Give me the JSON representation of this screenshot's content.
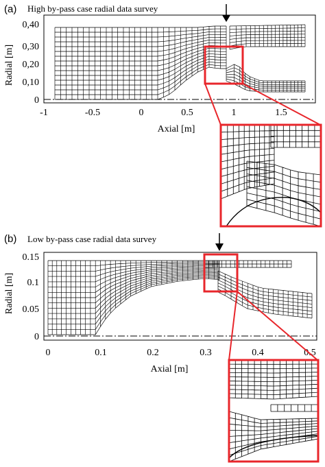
{
  "panels": [
    {
      "letter": "(a)",
      "survey_label": "High by-pass case radial data survey",
      "x_axis_title": "Axial [m]",
      "y_axis_title": "Radial [m]",
      "x_ticks": [
        "-1",
        "-0.5",
        "0",
        "0.5",
        "1",
        "1.5"
      ],
      "y_ticks": [
        "0",
        "0,10",
        "0,20",
        "0,30",
        "0,40"
      ]
    },
    {
      "letter": "(b)",
      "survey_label": "Low by-pass case radial data survey",
      "x_axis_title": "Axial [m]",
      "y_axis_title": "Radial [m]",
      "x_ticks": [
        "0",
        "0.1",
        "0.2",
        "0.3",
        "0.4",
        "0.5"
      ],
      "y_ticks": [
        "0",
        "0.05",
        "0.1",
        "0.15"
      ]
    }
  ],
  "colors": {
    "highlight": "#e8262b",
    "mesh": "#000000",
    "frame": "#000000"
  }
}
